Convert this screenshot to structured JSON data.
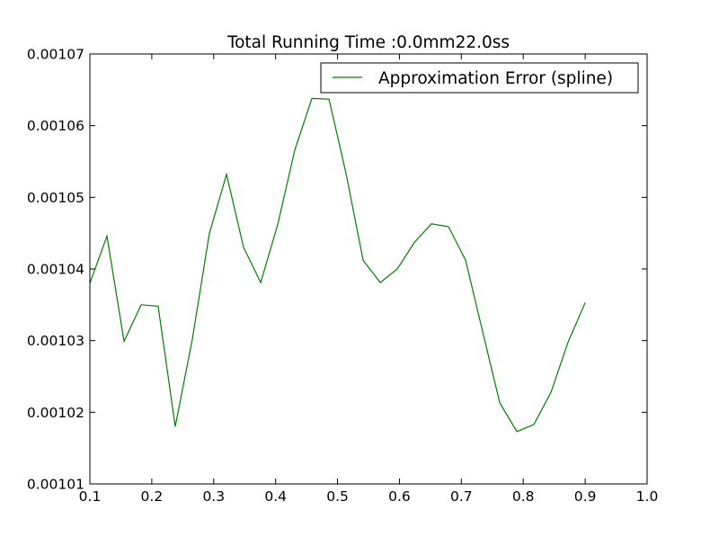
{
  "chart_data": {
    "type": "line",
    "title": "Total Running Time :0.0mm22.0ss",
    "xlabel": "",
    "ylabel": "",
    "xlim": [
      0.1,
      1.0
    ],
    "ylim": [
      0.00101,
      0.00107
    ],
    "x_ticks": [
      "0.1",
      "0.2",
      "0.3",
      "0.4",
      "0.5",
      "0.6",
      "0.7",
      "0.8",
      "0.9",
      "1.0"
    ],
    "y_ticks": [
      "0.00101",
      "0.00102",
      "0.00103",
      "0.00104",
      "0.00105",
      "0.00106",
      "0.00107"
    ],
    "grid": false,
    "legend_position": "top-right",
    "series": [
      {
        "name": "Approximation Error (spline)",
        "color": "#008000",
        "x": [
          0.1,
          0.1276,
          0.1552,
          0.1828,
          0.2103,
          0.2379,
          0.2655,
          0.2931,
          0.3207,
          0.3483,
          0.3759,
          0.4034,
          0.431,
          0.4586,
          0.4862,
          0.5138,
          0.5414,
          0.569,
          0.5966,
          0.6241,
          0.6517,
          0.6793,
          0.7069,
          0.7345,
          0.7621,
          0.7897,
          0.8172,
          0.8448,
          0.8724,
          0.9
        ],
        "values": [
          0.001038,
          0.0010446,
          0.0010299,
          0.001035,
          0.0010348,
          0.001018,
          0.0010302,
          0.001045,
          0.0010532,
          0.001043,
          0.0010381,
          0.0010462,
          0.0010566,
          0.0010638,
          0.0010637,
          0.0010533,
          0.0010412,
          0.0010381,
          0.00104,
          0.0010437,
          0.0010463,
          0.0010459,
          0.0010412,
          0.0010312,
          0.0010213,
          0.0010173,
          0.0010183,
          0.0010228,
          0.0010298,
          0.0010353
        ]
      }
    ]
  }
}
